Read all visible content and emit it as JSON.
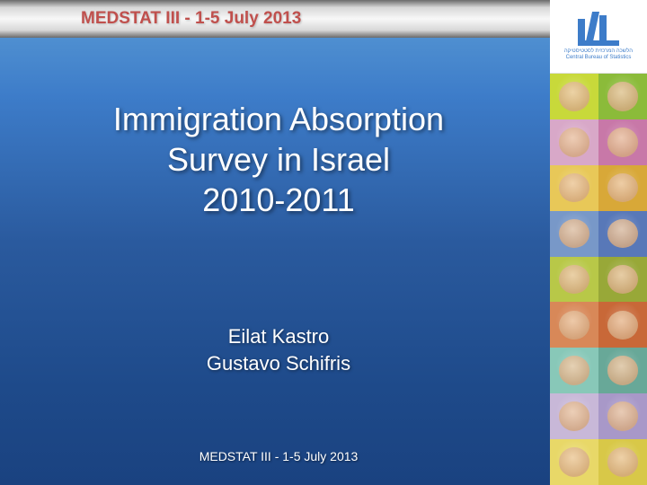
{
  "header": {
    "text": "MEDSTAT III -  1-5 July 2013",
    "color": "#c0504d",
    "fontsize": 19
  },
  "title": {
    "line1": "Immigration Absorption",
    "line2": "Survey in Israel",
    "line3": "2010-2011",
    "color": "#ffffff",
    "fontsize": 36
  },
  "authors": {
    "line1": "Eilat Kastro",
    "line2": "Gustavo Schifris",
    "color": "#ffffff",
    "fontsize": 22
  },
  "footer": {
    "text": "MEDSTAT III - 1-5 July 2013",
    "color": "#ffffff",
    "fontsize": 14
  },
  "logo": {
    "org_name_en": "Central Bureau of Statistics",
    "org_name_he": "הלשכה המרכזית לסטטיסטיקה",
    "color": "#3d7cc9"
  },
  "background": {
    "gradient_top": "#5a9bd5",
    "gradient_mid": "#2a5a9e",
    "gradient_bottom": "#1a4280"
  },
  "header_bar": {
    "gradient_edge": "#6a6a6a",
    "gradient_center": "#f8f8f8"
  },
  "puzzle_colors": [
    "#c8d93a",
    "#8bbb3a",
    "#d8a8c8",
    "#c878a8",
    "#e8c858",
    "#d8a838",
    "#7898c8",
    "#5878b8",
    "#b8c848",
    "#98a838",
    "#d88858",
    "#c86838",
    "#88c8b8",
    "#68a898",
    "#c8b8d8",
    "#a898c8",
    "#e8d868",
    "#d8c848"
  ]
}
